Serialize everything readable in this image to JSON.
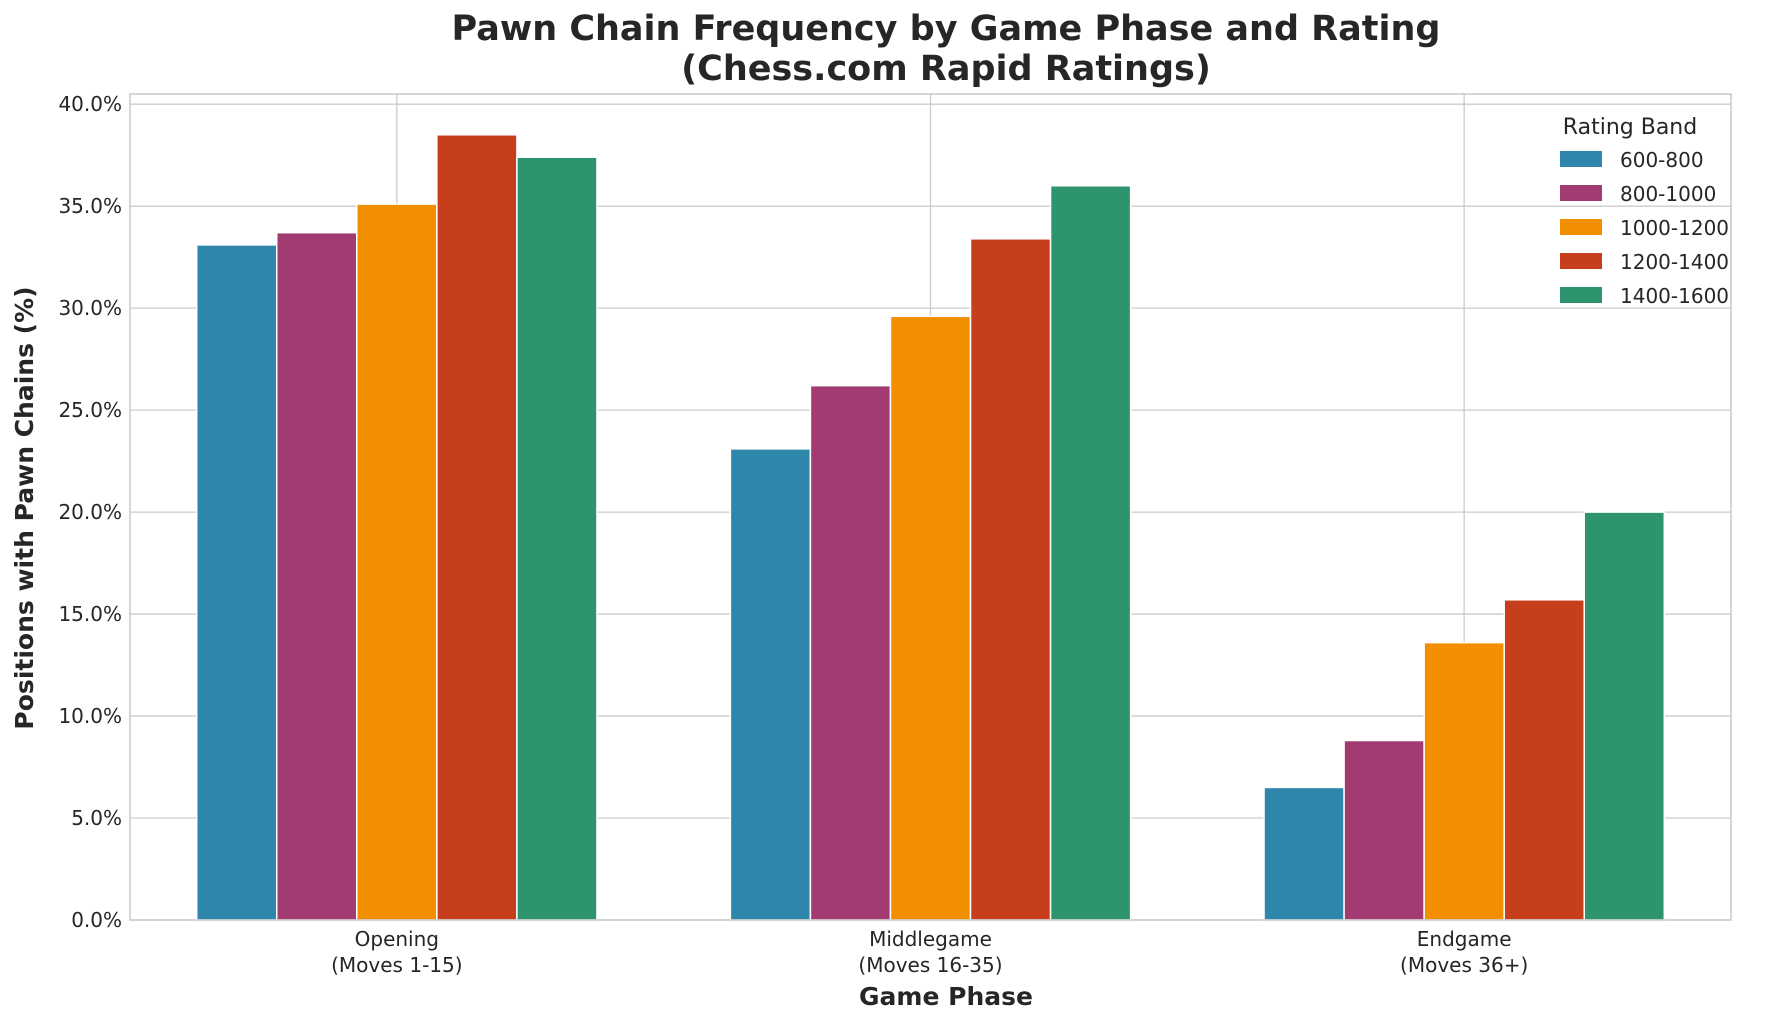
{
  "chart_data": {
    "type": "bar",
    "title_line1": "Pawn Chain Frequency by Game Phase and Rating",
    "title_line2": "(Chess.com Rapid Ratings)",
    "xlabel": "Game Phase",
    "ylabel": "Positions with Pawn Chains (%)",
    "ylim": [
      0,
      40.5
    ],
    "yticks": [
      0,
      5,
      10,
      15,
      20,
      25,
      30,
      35,
      40
    ],
    "ytick_labels": [
      "0.0%",
      "5.0%",
      "10.0%",
      "15.0%",
      "20.0%",
      "25.0%",
      "30.0%",
      "35.0%",
      "40.0%"
    ],
    "categories": [
      {
        "line1": "Opening",
        "line2": "(Moves 1-15)"
      },
      {
        "line1": "Middlegame",
        "line2": "(Moves 16-35)"
      },
      {
        "line1": "Endgame",
        "line2": "(Moves 36+)"
      }
    ],
    "legend_title": "Rating Band",
    "legend_position": "top-right",
    "grid": true,
    "series": [
      {
        "name": "600-800",
        "color": "#2E86AB",
        "values": [
          33.1,
          23.1,
          6.5
        ]
      },
      {
        "name": "800-1000",
        "color": "#A23B72",
        "values": [
          33.7,
          26.2,
          8.8
        ]
      },
      {
        "name": "1000-1200",
        "color": "#F18F01",
        "values": [
          35.1,
          29.6,
          13.6
        ]
      },
      {
        "name": "1200-1400",
        "color": "#C73E1D",
        "values": [
          38.5,
          33.4,
          15.7
        ]
      },
      {
        "name": "1400-1600",
        "color": "#2E946E",
        "values": [
          37.4,
          36.0,
          20.0
        ]
      }
    ]
  }
}
